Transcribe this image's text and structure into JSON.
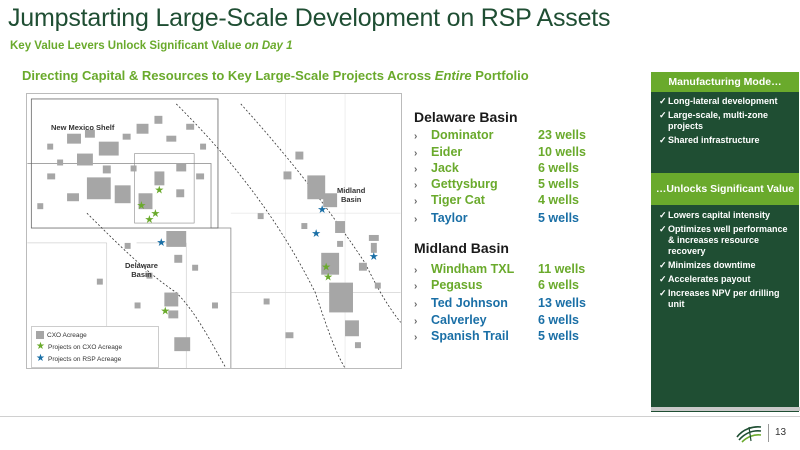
{
  "header": {
    "title": "Jumpstarting Large-Scale Development on RSP Assets",
    "subtitle_main": "Key Value Levers Unlock Significant Value ",
    "subtitle_em": "on Day 1"
  },
  "section": {
    "heading_main": "Directing Capital & Resources to Key Large-Scale Projects Across ",
    "heading_em": "Entire",
    "heading_tail": " Portfolio"
  },
  "map": {
    "inset_label": "New Mexico Shelf",
    "midland_label_1": "Midland",
    "midland_label_2": "Basin",
    "delaware_label_1": "Delaware",
    "delaware_label_2": "Basin",
    "legend": {
      "acreage": "CXO Acreage",
      "cxo_projects": "Projects on CXO Acreage",
      "rsp_projects": "Projects on RSP Acreage"
    },
    "colors": {
      "acreage": "#a6a6a6",
      "cxo_star": "#6aaa2c",
      "rsp_star": "#1a6fa6"
    }
  },
  "delaware": {
    "title": "Delaware Basin",
    "projects": [
      {
        "name": "Dominator",
        "wells": "23 wells",
        "owner": "cxo"
      },
      {
        "name": "Eider",
        "wells": "10 wells",
        "owner": "cxo"
      },
      {
        "name": "Jack",
        "wells": "6 wells",
        "owner": "cxo"
      },
      {
        "name": "Gettysburg",
        "wells": "5 wells",
        "owner": "cxo"
      },
      {
        "name": "Tiger Cat",
        "wells": "4 wells",
        "owner": "cxo"
      },
      {
        "name": "Taylor",
        "wells": "5 wells",
        "owner": "rsp"
      }
    ]
  },
  "midland": {
    "title": "Midland Basin",
    "projects": [
      {
        "name": "Windham TXL",
        "wells": "11 wells",
        "owner": "cxo"
      },
      {
        "name": "Pegasus",
        "wells": "6 wells",
        "owner": "cxo"
      },
      {
        "name": "Ted Johnson",
        "wells": "13 wells",
        "owner": "rsp"
      },
      {
        "name": "Calverley",
        "wells": "6 wells",
        "owner": "rsp"
      },
      {
        "name": "Spanish Trail",
        "wells": "5 wells",
        "owner": "rsp"
      }
    ]
  },
  "side_panel": {
    "box1_title": "Manufacturing Mode…",
    "box1_items": [
      "Long-lateral development",
      "Large-scale, multi-zone projects",
      "Shared infrastructure"
    ],
    "box2_title": "…Unlocks Significant Value",
    "box2_items": [
      "Lowers capital intensity",
      "Optimizes well performance & increases resource recovery",
      "Minimizes downtime",
      "Accelerates payout",
      "Increases NPV per drilling unit"
    ]
  },
  "footer": {
    "page_number": "13"
  },
  "theme": {
    "dark_green": "#1f4e33",
    "light_green": "#6aaa2c",
    "blue": "#1a6fa6"
  }
}
